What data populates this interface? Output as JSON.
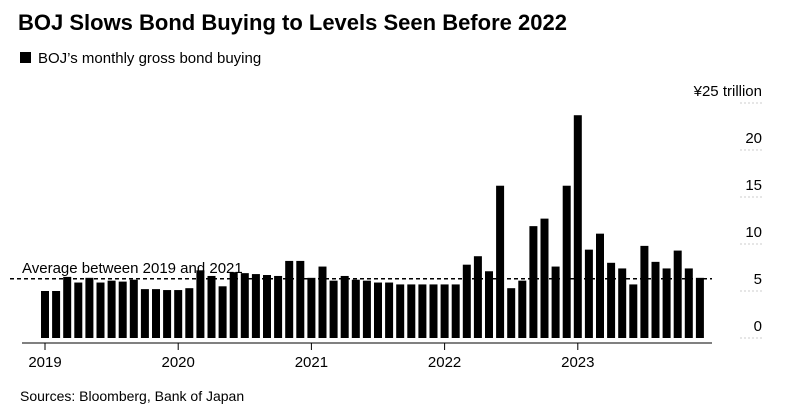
{
  "chart_data": {
    "type": "bar",
    "title": "BOJ Slows Bond Buying to Levels Seen Before 2022",
    "legend": "BOJ’s monthly gross bond buying",
    "source": "Sources: Bloomberg, Bank of Japan",
    "color": "#000000",
    "categories": [
      "2019",
      null,
      null,
      null,
      null,
      null,
      null,
      null,
      null,
      null,
      null,
      null,
      "2020",
      null,
      null,
      null,
      null,
      null,
      null,
      null,
      null,
      null,
      null,
      null,
      "2021",
      null,
      null,
      null,
      null,
      null,
      null,
      null,
      null,
      null,
      null,
      null,
      "2022",
      null,
      null,
      null,
      null,
      null,
      null,
      null,
      null,
      null,
      null,
      null,
      "2023",
      null,
      null,
      null,
      null,
      null,
      null,
      null,
      null,
      null,
      null,
      null
    ],
    "values": [
      5.0,
      5.0,
      6.5,
      5.9,
      6.4,
      5.9,
      6.1,
      6.0,
      6.2,
      5.2,
      5.2,
      5.1,
      5.1,
      5.3,
      7.2,
      6.6,
      5.5,
      7.0,
      6.9,
      6.8,
      6.7,
      6.6,
      8.2,
      8.2,
      6.4,
      7.6,
      6.1,
      6.6,
      6.2,
      6.1,
      5.9,
      5.9,
      5.7,
      5.7,
      5.7,
      5.7,
      5.7,
      5.7,
      7.8,
      8.7,
      7.1,
      16.2,
      5.3,
      6.1,
      11.9,
      12.7,
      7.6,
      16.2,
      23.7,
      9.4,
      11.1,
      8.0,
      7.4,
      5.7,
      9.8,
      8.1,
      7.4,
      9.3,
      7.4,
      6.4
    ],
    "ylim": [
      0,
      25
    ],
    "yticks": [
      0,
      5,
      10,
      15,
      20,
      {
        "value": 25,
        "label": "¥25 trillion"
      }
    ],
    "annotation": {
      "text": "Average between 2019 and 2021",
      "value": 6.3
    }
  }
}
